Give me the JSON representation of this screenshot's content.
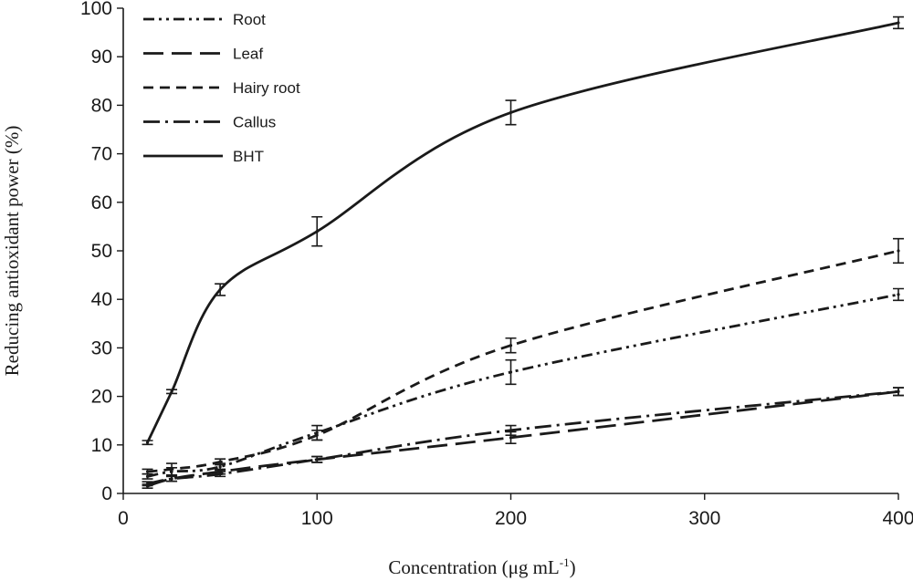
{
  "chart_data": {
    "type": "line",
    "xlabel": "Concentration (μg mL",
    "xlabel_sup": "-1",
    "xlabel_end": ")",
    "ylabel": "Reducing antioxidant power (%)",
    "xlim": [
      0,
      400
    ],
    "ylim": [
      0,
      100
    ],
    "x_ticks": [
      0,
      100,
      200,
      300,
      400
    ],
    "y_ticks": [
      0,
      10,
      20,
      30,
      40,
      50,
      60,
      70,
      80,
      90,
      100
    ],
    "grid": false,
    "legend_position": "top-left",
    "x": [
      12.5,
      25,
      50,
      100,
      200,
      400
    ],
    "series": [
      {
        "name": "Root",
        "dash": "dash-dot-dot",
        "values": [
          3.5,
          4.5,
          5.5,
          12.5,
          25,
          41
        ],
        "errors": [
          0.5,
          0.8,
          0.7,
          1.5,
          2.5,
          1.2
        ]
      },
      {
        "name": "Leaf",
        "dash": "long-dash",
        "values": [
          1.5,
          3,
          4.5,
          7,
          11.5,
          21
        ],
        "errors": [
          0.4,
          0.5,
          0.5,
          0.6,
          1.2,
          0.8
        ]
      },
      {
        "name": "Hairy root",
        "dash": "short-dash",
        "values": [
          4.5,
          5,
          6.5,
          12,
          30.5,
          50
        ],
        "errors": [
          0.5,
          1.2,
          0.6,
          1,
          1.5,
          2.5
        ]
      },
      {
        "name": "Callus",
        "dash": "dash-dot",
        "values": [
          2,
          3,
          4,
          7,
          13,
          21
        ],
        "errors": [
          0.4,
          0.5,
          0.5,
          0.6,
          1,
          0.8
        ]
      },
      {
        "name": "BHT",
        "dash": "solid",
        "values": [
          10.5,
          21,
          42,
          54,
          78.5,
          97
        ],
        "errors": [
          0.4,
          0.4,
          1.2,
          3,
          2.5,
          1.2
        ]
      }
    ]
  }
}
